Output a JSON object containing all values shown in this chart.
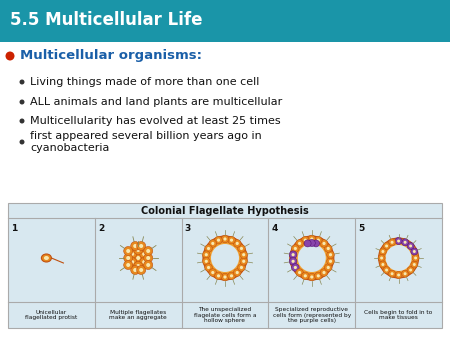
{
  "title": "5.5 Multicellular Life",
  "title_color": "#ffffff",
  "title_bg_top": "#1a8fa0",
  "title_bg_bot": "#2db8c8",
  "header_label": "Multicellular organisms:",
  "header_bullet_color": "#cc2200",
  "header_text_color": "#1a5fa8",
  "bullet_points": [
    "Living things made of more than one cell",
    "ALL animals and land plants are multicellular",
    "Multicellularity has evolved at least 25 times",
    "first appeared several billion years ago in\ncyanobacteria"
  ],
  "table_title": "Colonial Flagellate Hypothesis",
  "table_bg": "#d8e8f0",
  "table_numbers": [
    "1",
    "2",
    "3",
    "4",
    "5"
  ],
  "table_labels": [
    "Unicellular\nflagellated protist",
    "Multiple flagellates\nmake an aggregate",
    "The unspecialized\nflagelate cells form a\nhollow sphere",
    "Specialized reproductive\ncells form (represented by\nthe purple cells)",
    "Cells begin to fold in to\nmake tissues"
  ],
  "slide_bg": "#ffffff",
  "orange_cell": "#e8891e",
  "orange_edge": "#c05010",
  "orange_light": "#f5b050",
  "orange_fill": "#f0a030",
  "purple_cell": "#8844aa",
  "purple_edge": "#551177",
  "cell_inner": "#f8e8b0",
  "flagella_color": "#888855"
}
